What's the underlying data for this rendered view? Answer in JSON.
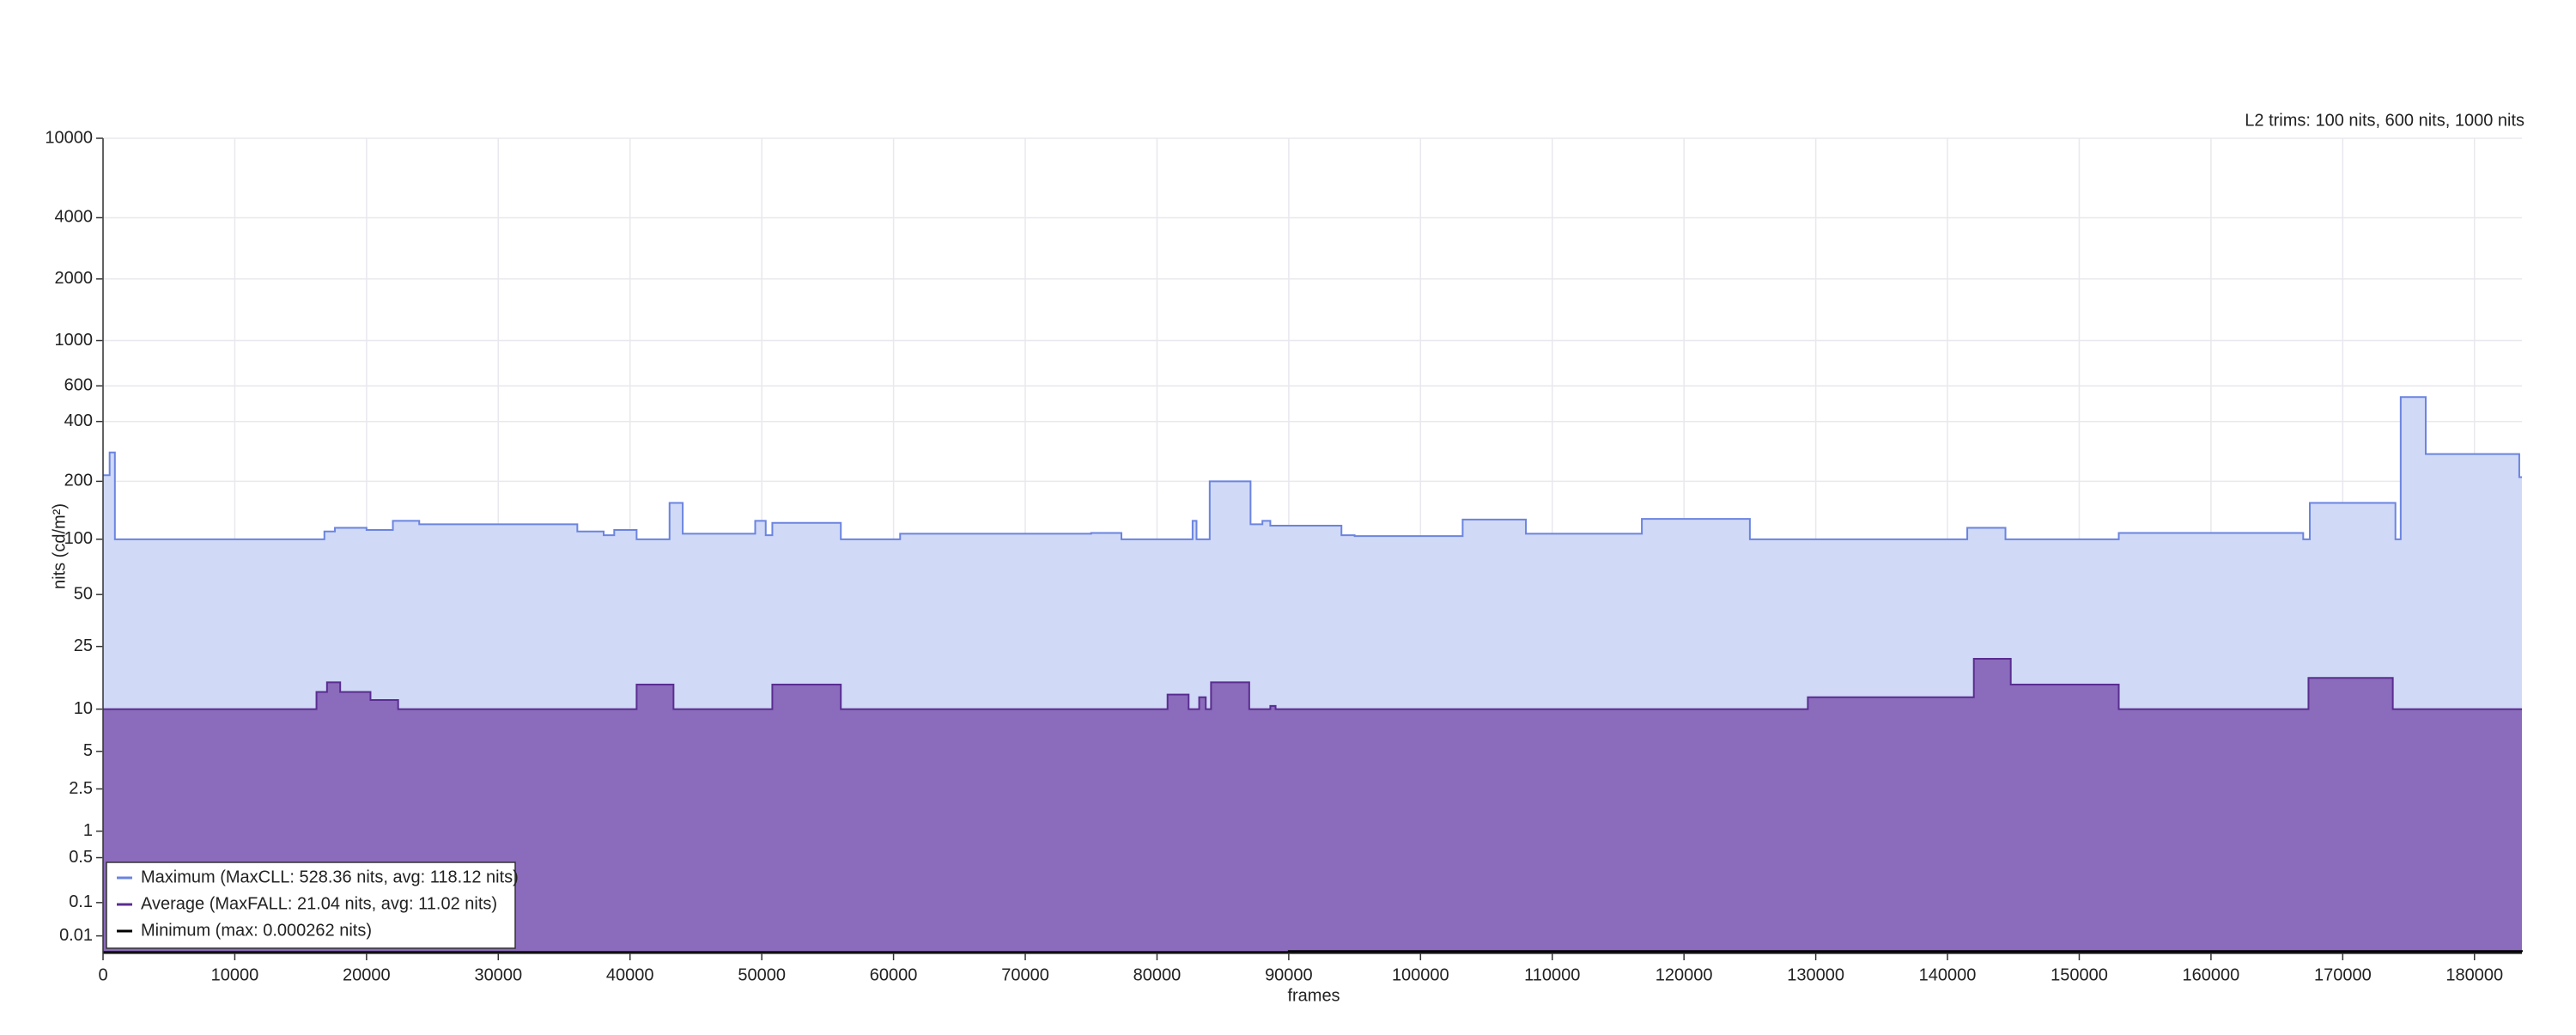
{
  "chart_data": {
    "type": "step-area",
    "annotation": "L2 trims: 100 nits, 600 nits, 1000 nits",
    "xlabel": "frames",
    "ylabel": "nits (cd/m²)",
    "yscale": "pq",
    "grid": true,
    "legend": "lower left",
    "xlim": [
      0,
      183600
    ],
    "ylim": [
      0,
      10000
    ],
    "xticks": [
      0,
      10000,
      20000,
      30000,
      40000,
      50000,
      60000,
      70000,
      80000,
      90000,
      100000,
      110000,
      120000,
      130000,
      140000,
      150000,
      160000,
      170000,
      180000
    ],
    "yticks": [
      0.01,
      0.1,
      0.5,
      1,
      2.5,
      5,
      10,
      25,
      50,
      100,
      200,
      400,
      600,
      1000,
      2000,
      4000,
      10000
    ],
    "series": [
      {
        "name": "Maximum (MaxCLL: 528.36 nits, avg: 118.12 nits)",
        "color": "#6b84e0",
        "fill": "#d0d9f6",
        "x": [
          0,
          500,
          900,
          16800,
          17600,
          20000,
          22000,
          24000,
          36000,
          38000,
          38800,
          40500,
          43000,
          44000,
          49500,
          50300,
          50800,
          56000,
          60500,
          75000,
          77300,
          82700,
          83000,
          84000,
          87100,
          88000,
          88600,
          94000,
          95000,
          103200,
          108000,
          116800,
          125000,
          141500,
          144400,
          153000,
          167000,
          167500,
          174000,
          174400,
          176300,
          183400,
          183600
        ],
        "values": [
          215,
          280,
          100,
          110,
          115,
          112,
          125,
          120,
          110,
          105,
          112,
          100,
          155,
          107,
          125,
          105,
          122,
          100,
          107,
          108,
          100,
          125,
          100,
          200,
          120,
          125,
          118,
          105,
          104,
          127,
          107,
          128,
          100,
          115,
          100,
          108,
          100,
          155,
          100,
          528.36,
          275,
          210,
          210
        ]
      },
      {
        "name": "Average (MaxFALL: 21.04 nits, avg: 11.02 nits)",
        "color": "#5a2d91",
        "fill": "#8b6bbb",
        "x": [
          0,
          16200,
          17000,
          18000,
          20300,
          22400,
          40500,
          43300,
          50800,
          56000,
          80800,
          82400,
          83200,
          83700,
          84100,
          87000,
          88600,
          89000,
          129400,
          142000,
          144800,
          153000,
          167400,
          173800,
          183600
        ],
        "values": [
          10,
          13,
          15,
          13,
          11.5,
          10,
          14.5,
          10,
          14.5,
          10,
          12.5,
          10,
          12,
          10,
          15,
          10,
          10.5,
          10,
          12,
          21.04,
          14.5,
          10,
          16,
          10,
          10
        ]
      },
      {
        "name": "Minimum (max: 0.000262 nits)",
        "color": "#000000",
        "fill": "#000000",
        "x": [
          0,
          90000,
          183600
        ],
        "values": [
          0.0001,
          0.000262,
          0.0001
        ]
      }
    ]
  }
}
